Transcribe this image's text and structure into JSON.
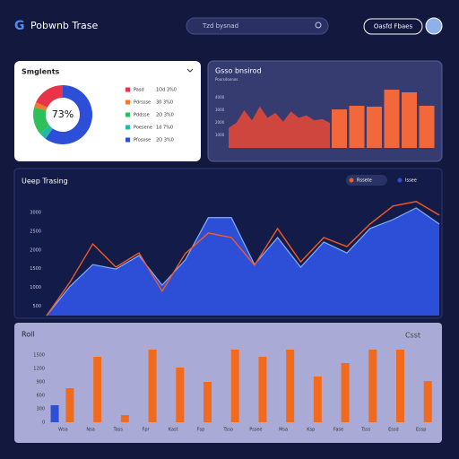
{
  "header": {
    "logo": "G",
    "title": "Pobwnb Trase",
    "search": "Tzd bysnad",
    "button": "Oasfd Fbaes"
  },
  "chart_data": [
    {
      "type": "pie",
      "title": "Smglents",
      "center_label": "73%",
      "categories": [
        "Pasd",
        "Pdrssse",
        "Pddsse",
        "Poesene",
        "Pfosose"
      ],
      "details": [
        "1Od 3%0",
        "30 3%0",
        "2O 3%0",
        "1d 7%0",
        "2O 3%0"
      ],
      "values": [
        18,
        3,
        15,
        4,
        60
      ],
      "colors": [
        "#e8344a",
        "#f07a2a",
        "#2fbf5a",
        "#23b9a8",
        "#2d4fd8"
      ]
    },
    {
      "type": "combo",
      "title": "Gsso bnsirod",
      "subtitle": "Poorsdoonos",
      "area": {
        "color": "#e0483a",
        "values": [
          1600,
          2000,
          3000,
          2200,
          3300,
          2400,
          2800,
          2100,
          2900,
          2400,
          2600,
          2200,
          2300,
          2000
        ]
      },
      "bars": {
        "color": "#f2683a",
        "values": [
          3070,
          3360,
          3290,
          4640,
          4430,
          3360
        ]
      },
      "ylim": [
        0,
        5000
      ],
      "yticks": [
        1000,
        2000,
        3000,
        4000
      ]
    },
    {
      "type": "area",
      "title": "Ueep Trasing",
      "categories": [
        null,
        null,
        null,
        null,
        null,
        null,
        null,
        null,
        null,
        null,
        null,
        null,
        null,
        null,
        null,
        null,
        null,
        null
      ],
      "series": [
        {
          "name": "Rssete",
          "color": "#f05a28",
          "values": [
            250,
            1130,
            2160,
            1540,
            1920,
            900,
            1900,
            2450,
            2330,
            1590,
            2570,
            1680,
            2330,
            2090,
            2690,
            3170,
            3290,
            2930
          ]
        },
        {
          "name": "Issee",
          "color": "#2d4fd8",
          "area": true,
          "values": [
            250,
            1020,
            1610,
            1490,
            1850,
            1060,
            1730,
            2860,
            2860,
            1610,
            2330,
            1540,
            2210,
            1920,
            2570,
            2810,
            3120,
            2690
          ]
        }
      ],
      "ylim": [
        250,
        3500
      ],
      "yticks": [
        500,
        1000,
        1500,
        2000,
        2500,
        3000
      ]
    },
    {
      "type": "bar",
      "title": "Roll",
      "filter": "Csst",
      "categories": [
        "Wsa",
        "Nsa",
        "Tass",
        "Fpr",
        "Kast",
        "Fsp",
        "Tsso",
        "Pssee",
        "Msa",
        "Ksp",
        "Fase",
        "Tsss",
        "Essd",
        "Essp"
      ],
      "series": [
        {
          "color": "#2d4fd8",
          "values": [
            380,
            null,
            null,
            null,
            null,
            null,
            null,
            null,
            null,
            null,
            null,
            null,
            null,
            null
          ]
        },
        {
          "color": "#f26b1d",
          "values": [
            760,
            1460,
            160,
            1620,
            1220,
            900,
            1620,
            1460,
            1620,
            1020,
            1320,
            1620,
            1620,
            920
          ]
        }
      ],
      "ylim": [
        0,
        1500
      ],
      "yticks": [
        0,
        300,
        600,
        900,
        1200,
        1500
      ]
    }
  ]
}
